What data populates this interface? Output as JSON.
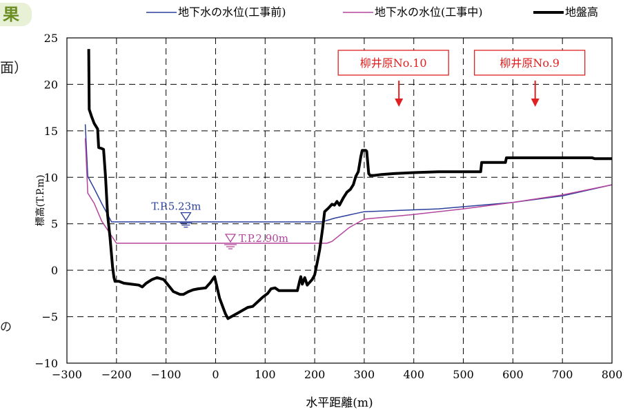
{
  "fragments": [
    "果",
    "面）",
    "の"
  ],
  "chart_data": {
    "type": "line",
    "xlabel": "水平距離(m)",
    "ylabel": "標高(T.P.m)",
    "xlim": [
      -300,
      800
    ],
    "ylim": [
      -10,
      25
    ],
    "xticks": [
      -300,
      -200,
      -100,
      0,
      100,
      200,
      300,
      400,
      500,
      600,
      700,
      800
    ],
    "yticks": [
      -10,
      -5,
      0,
      5,
      10,
      15,
      20,
      25
    ],
    "grid": "dashed",
    "legend_position": "top",
    "series": [
      {
        "name": "地下水の水位(工事前)",
        "color": "#2b3f9c",
        "width": 1.5,
        "points": [
          [
            -263,
            15.7
          ],
          [
            -258,
            10.1
          ],
          [
            -245,
            8.8
          ],
          [
            -230,
            7.2
          ],
          [
            -210,
            5.2
          ],
          [
            215,
            5.2
          ],
          [
            240,
            5.6
          ],
          [
            300,
            6.3
          ],
          [
            450,
            6.6
          ],
          [
            600,
            7.3
          ],
          [
            700,
            8.0
          ],
          [
            800,
            9.2
          ]
        ]
      },
      {
        "name": "地下水の水位(工事中)",
        "color": "#b3449c",
        "width": 1.5,
        "points": [
          [
            -263,
            14.2
          ],
          [
            -258,
            8.3
          ],
          [
            -245,
            7.2
          ],
          [
            -230,
            5.3
          ],
          [
            -200,
            2.9
          ],
          [
            225,
            2.9
          ],
          [
            235,
            3.1
          ],
          [
            270,
            4.6
          ],
          [
            300,
            5.5
          ],
          [
            400,
            6.0
          ],
          [
            500,
            6.6
          ],
          [
            600,
            7.3
          ],
          [
            700,
            8.1
          ],
          [
            800,
            9.2
          ]
        ]
      },
      {
        "name": "地盤高",
        "color": "#000000",
        "width": 4,
        "points": [
          [
            -256,
            23.8
          ],
          [
            -255,
            17.3
          ],
          [
            -250,
            16.5
          ],
          [
            -245,
            15.8
          ],
          [
            -238,
            15.2
          ],
          [
            -236,
            13.2
          ],
          [
            -230,
            13.1
          ],
          [
            -226,
            13.0
          ],
          [
            -222,
            10.0
          ],
          [
            -218,
            6.0
          ],
          [
            -213,
            3.5
          ],
          [
            -208,
            0.4
          ],
          [
            -205,
            -0.8
          ],
          [
            -203,
            -1.2
          ],
          [
            -195,
            -1.2
          ],
          [
            -185,
            -1.4
          ],
          [
            -170,
            -1.5
          ],
          [
            -155,
            -1.6
          ],
          [
            -148,
            -1.8
          ],
          [
            -140,
            -1.4
          ],
          [
            -128,
            -1.0
          ],
          [
            -118,
            -0.8
          ],
          [
            -105,
            -1.0
          ],
          [
            -100,
            -1.3
          ],
          [
            -85,
            -2.3
          ],
          [
            -72,
            -2.6
          ],
          [
            -65,
            -2.6
          ],
          [
            -55,
            -2.3
          ],
          [
            -45,
            -2.1
          ],
          [
            -35,
            -2.0
          ],
          [
            -20,
            -1.9
          ],
          [
            -10,
            -1.3
          ],
          [
            -5,
            -0.9
          ],
          [
            -2,
            -0.7
          ],
          [
            2,
            -1.6
          ],
          [
            8,
            -3.0
          ],
          [
            15,
            -4.0
          ],
          [
            20,
            -4.7
          ],
          [
            25,
            -5.2
          ],
          [
            35,
            -4.9
          ],
          [
            45,
            -4.6
          ],
          [
            55,
            -4.3
          ],
          [
            65,
            -4.0
          ],
          [
            75,
            -3.9
          ],
          [
            85,
            -3.4
          ],
          [
            95,
            -2.9
          ],
          [
            105,
            -2.5
          ],
          [
            112,
            -2.0
          ],
          [
            120,
            -1.9
          ],
          [
            128,
            -2.2
          ],
          [
            150,
            -2.2
          ],
          [
            165,
            -2.2
          ],
          [
            170,
            -1.1
          ],
          [
            172,
            -0.7
          ],
          [
            175,
            -1.5
          ],
          [
            180,
            -0.8
          ],
          [
            185,
            -1.6
          ],
          [
            195,
            -1.0
          ],
          [
            200,
            -0.5
          ],
          [
            205,
            0.8
          ],
          [
            210,
            2.2
          ],
          [
            216,
            4.5
          ],
          [
            220,
            6.3
          ],
          [
            228,
            6.7
          ],
          [
            235,
            7.1
          ],
          [
            240,
            7.0
          ],
          [
            245,
            7.4
          ],
          [
            250,
            7.0
          ],
          [
            258,
            7.8
          ],
          [
            265,
            8.4
          ],
          [
            272,
            8.7
          ],
          [
            278,
            9.2
          ],
          [
            283,
            10.1
          ],
          [
            288,
            10.6
          ],
          [
            293,
            12.2
          ],
          [
            296,
            12.9
          ],
          [
            303,
            12.9
          ],
          [
            305,
            12.8
          ],
          [
            309,
            10.4
          ],
          [
            312,
            10.2
          ],
          [
            320,
            10.2
          ],
          [
            335,
            10.3
          ],
          [
            360,
            10.4
          ],
          [
            400,
            10.5
          ],
          [
            450,
            10.6
          ],
          [
            480,
            10.6
          ],
          [
            535,
            10.6
          ],
          [
            537,
            11.6
          ],
          [
            585,
            11.6
          ],
          [
            587,
            12.1
          ],
          [
            700,
            12.1
          ],
          [
            760,
            12.1
          ],
          [
            765,
            12.0
          ],
          [
            800,
            12.0
          ]
        ]
      }
    ],
    "annotations": {
      "water_label_before": {
        "text": "T.P.5.23m",
        "x": -60,
        "y": 5.23
      },
      "water_label_during": {
        "text": "T.P.2.90m",
        "x": 30,
        "y": 2.9
      },
      "boreholes": [
        {
          "label": "柳井原No.10",
          "x": 370
        },
        {
          "label": "柳井原No.9",
          "x": 645
        }
      ]
    }
  }
}
